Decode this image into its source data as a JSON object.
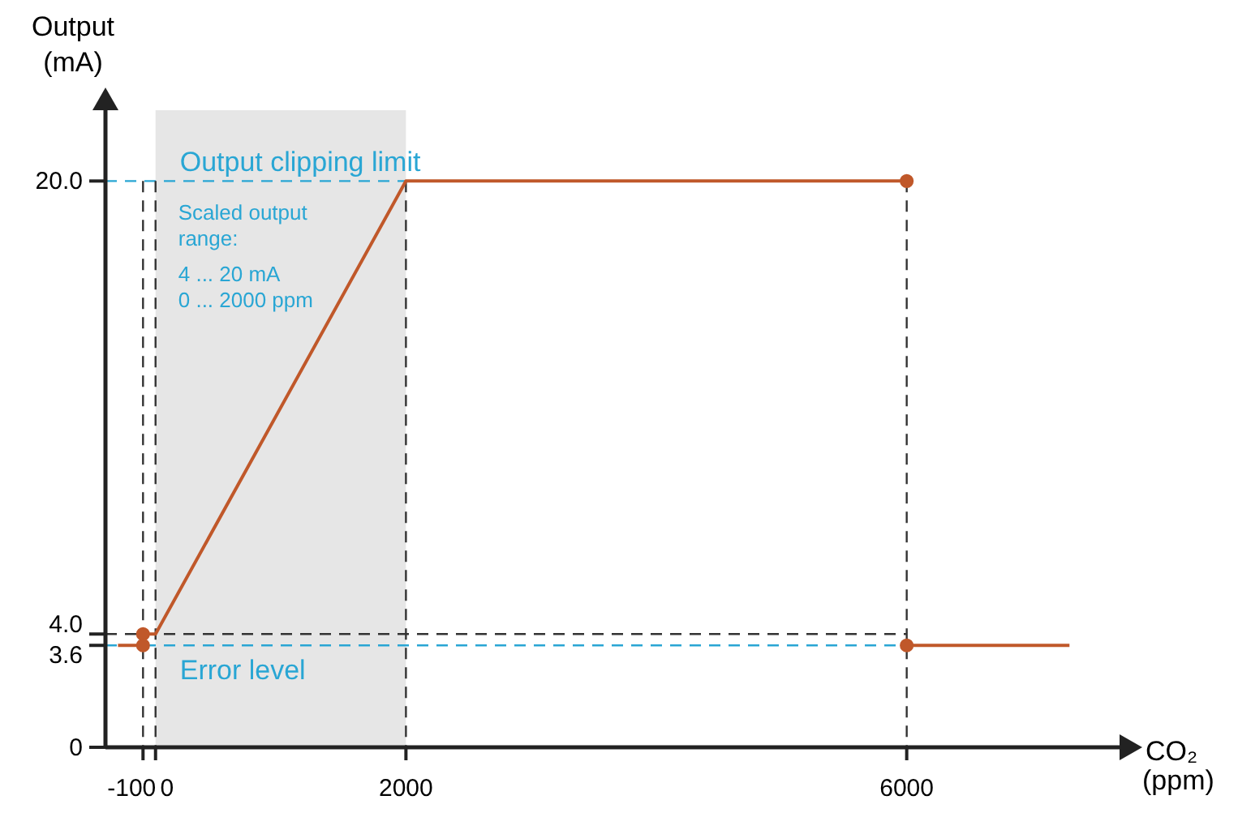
{
  "chart_data": {
    "type": "line",
    "xlabel": "CO₂\n(ppm)",
    "ylabel": "Output\n(mA)",
    "xlim": [
      -400,
      7700
    ],
    "ylim": [
      0,
      22.5
    ],
    "xticks": [
      -100,
      0,
      2000,
      6000
    ],
    "yticks": [
      0,
      {
        "value": 3.6,
        "label": "3.6"
      },
      {
        "value": 4,
        "label": "4.0"
      },
      {
        "value": 20,
        "label": "20.0"
      }
    ],
    "grid": false,
    "marker": "none",
    "line_style": "solid",
    "series": [
      {
        "color": "#c0582a",
        "x": [
          -300,
          -100
        ],
        "values": [
          3.6,
          3.6
        ]
      },
      {
        "color": "#c0582a",
        "x": [
          -100,
          0,
          2000,
          6000
        ],
        "values": [
          4,
          4,
          20,
          20
        ]
      },
      {
        "color": "#c0582a",
        "x": [
          6000,
          7300
        ],
        "values": [
          3.6,
          3.6
        ]
      },
      {
        "type": "scatter",
        "color": "#c0582a",
        "marker": "circle",
        "x": [
          -100,
          6000,
          -100,
          6000
        ],
        "values": [
          4,
          20,
          3.6,
          3.6
        ]
      }
    ],
    "ref_lines": [
      {
        "axis": "y",
        "value": 20,
        "label": "Output clipping limit",
        "color": "#29a6d4",
        "line_style": "dashed"
      },
      {
        "axis": "y",
        "value": 3.6,
        "label": "Error level",
        "color": "#29a6d4",
        "line_style": "dashed"
      },
      {
        "axis": "y",
        "value": 4,
        "color": "#333333",
        "line_style": "dashed"
      },
      {
        "axis": "x",
        "value": -100,
        "color": "#333333",
        "line_style": "dashed"
      },
      {
        "axis": "x",
        "value": 0,
        "color": "#333333",
        "line_style": "dashed"
      },
      {
        "axis": "x",
        "value": 2000,
        "color": "#333333",
        "line_style": "dashed"
      },
      {
        "axis": "x",
        "value": 6000,
        "color": "#333333",
        "line_style": "dashed"
      }
    ],
    "bands": [
      {
        "axis": "x",
        "from": 0,
        "to": 2000,
        "color": "#e6e6e6",
        "label": "Scaled output\nrange:\n4 ... 20 mA\n0 ... 2000 ppm"
      }
    ]
  }
}
